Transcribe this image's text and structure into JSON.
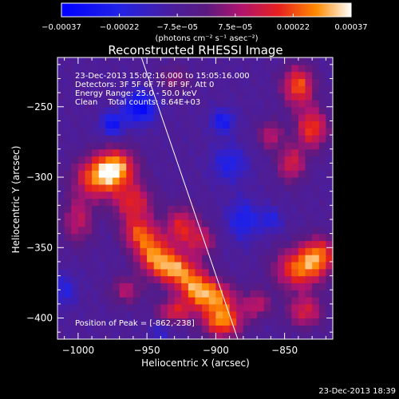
{
  "chart_data": {
    "type": "heatmap",
    "title": "Reconstructed RHESSI Image",
    "xlabel": "Heliocentric X (arcsec)",
    "ylabel": "Heliocentric Y (arcsec)",
    "xlim": [
      -1015,
      -815
    ],
    "ylim": [
      -415,
      -215
    ],
    "xticks": [
      -1000,
      -950,
      -900,
      -850
    ],
    "yticks": [
      -250,
      -300,
      -350,
      -400
    ],
    "xtick_labels": [
      "−1000",
      "−950",
      "−900",
      "−850"
    ],
    "ytick_labels": [
      "−250",
      "−300",
      "−350",
      "−400"
    ],
    "colorbar": {
      "min": -0.00037,
      "max": 0.00037,
      "tick_labels": [
        "−0.00037",
        "−0.00022",
        "−7.5e−05",
        "7.5e−05",
        "0.00022",
        "0.00037"
      ],
      "unit_label": "(photons cm⁻² s⁻¹ asec⁻²)"
    },
    "annotations": [
      "23-Dec-2013 15:02:16.000 to 15:05:16.000",
      "Detectors: 3F 5F 6F 7F 8F 9F, Att 0",
      "Energy Range: 25.0 - 50.0 keV",
      "Clean    Total counts: 8.64E+03"
    ],
    "peak_label": "Position of Peak = [-862,-238]",
    "limb_line": {
      "x": [
        -954,
        -884
      ],
      "y": [
        -215,
        -415
      ]
    },
    "blobs": [
      {
        "x": -985,
        "y": -300,
        "sx": 12,
        "sy": 10,
        "amp": 0.00032
      },
      {
        "x": -972,
        "y": -292,
        "sx": 10,
        "sy": 9,
        "amp": 0.0003
      },
      {
        "x": -960,
        "y": -318,
        "sx": 10,
        "sy": 10,
        "amp": 0.00024
      },
      {
        "x": -955,
        "y": -340,
        "sx": 9,
        "sy": 8,
        "amp": 0.00026
      },
      {
        "x": -945,
        "y": -355,
        "sx": 9,
        "sy": 9,
        "amp": 0.0003
      },
      {
        "x": -930,
        "y": -365,
        "sx": 10,
        "sy": 8,
        "amp": 0.00033
      },
      {
        "x": -915,
        "y": -378,
        "sx": 9,
        "sy": 9,
        "amp": 0.0003
      },
      {
        "x": -900,
        "y": -385,
        "sx": 10,
        "sy": 8,
        "amp": 0.00028
      },
      {
        "x": -895,
        "y": -402,
        "sx": 10,
        "sy": 8,
        "amp": 0.00034
      },
      {
        "x": -930,
        "y": -395,
        "sx": 9,
        "sy": 6,
        "amp": 0.00022
      },
      {
        "x": -925,
        "y": -335,
        "sx": 8,
        "sy": 10,
        "amp": 0.00024
      },
      {
        "x": -910,
        "y": -345,
        "sx": 7,
        "sy": 8,
        "amp": 0.00018
      },
      {
        "x": -965,
        "y": -380,
        "sx": 8,
        "sy": 7,
        "amp": 0.00016
      },
      {
        "x": -1000,
        "y": -330,
        "sx": 8,
        "sy": 12,
        "amp": 0.00018
      },
      {
        "x": -840,
        "y": -235,
        "sx": 8,
        "sy": 10,
        "amp": 0.0003
      },
      {
        "x": -830,
        "y": -265,
        "sx": 8,
        "sy": 10,
        "amp": 0.00028
      },
      {
        "x": -845,
        "y": -290,
        "sx": 7,
        "sy": 9,
        "amp": 0.00022
      },
      {
        "x": -860,
        "y": -270,
        "sx": 6,
        "sy": 7,
        "amp": 0.00018
      },
      {
        "x": -840,
        "y": -365,
        "sx": 12,
        "sy": 10,
        "amp": 0.0003
      },
      {
        "x": -825,
        "y": -355,
        "sx": 9,
        "sy": 9,
        "amp": 0.00028
      },
      {
        "x": -835,
        "y": -395,
        "sx": 9,
        "sy": 8,
        "amp": 0.00022
      },
      {
        "x": -870,
        "y": -390,
        "sx": 7,
        "sy": 7,
        "amp": 0.00018
      },
      {
        "x": -930,
        "y": -230,
        "sx": 8,
        "sy": 6,
        "amp": 0.00012
      },
      {
        "x": -955,
        "y": -250,
        "sx": 8,
        "sy": 8,
        "amp": -0.00028
      },
      {
        "x": -975,
        "y": -262,
        "sx": 6,
        "sy": 6,
        "amp": -0.00022
      },
      {
        "x": -890,
        "y": -290,
        "sx": 9,
        "sy": 9,
        "amp": -0.00016
      },
      {
        "x": -880,
        "y": -330,
        "sx": 8,
        "sy": 10,
        "amp": -0.00018
      },
      {
        "x": -860,
        "y": -330,
        "sx": 6,
        "sy": 6,
        "amp": -0.00014
      },
      {
        "x": -895,
        "y": -260,
        "sx": 6,
        "sy": 6,
        "amp": -0.0002
      },
      {
        "x": -1010,
        "y": -380,
        "sx": 6,
        "sy": 8,
        "amp": -0.00014
      },
      {
        "x": -940,
        "y": -410,
        "sx": 6,
        "sy": 5,
        "amp": -0.0001
      }
    ]
  },
  "footer": {
    "timestamp": "23-Dec-2013 18:39"
  }
}
